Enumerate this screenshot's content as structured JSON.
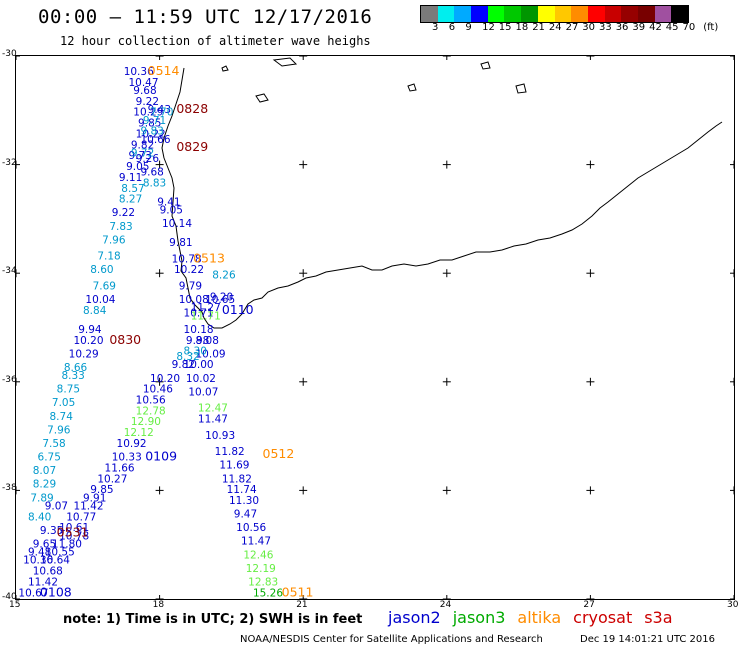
{
  "header": {
    "title": "00:00 – 11:59 UTC 12/17/2016",
    "subtitle": "12 hour collection of altimeter wave heighs"
  },
  "colorbar": {
    "colors": [
      "#7a7a7a",
      "#00eeee",
      "#00aaff",
      "#0000ff",
      "#00ff00",
      "#00c800",
      "#009600",
      "#ffff00",
      "#ffc800",
      "#ff8c00",
      "#ff0000",
      "#c80000",
      "#960000",
      "#780000",
      "#a050a0",
      "#000000"
    ],
    "labels": [
      "3",
      "6",
      "9",
      "12",
      "15",
      "18",
      "21",
      "24",
      "27",
      "30",
      "33",
      "36",
      "39",
      "42",
      "45",
      "70",
      "(ft)"
    ]
  },
  "axes": {
    "lat_labels": [
      "-30",
      "-32",
      "-34",
      "-36",
      "-38",
      "-40"
    ],
    "lon_labels": [
      "15",
      "18",
      "21",
      "24",
      "27",
      "30"
    ],
    "lon_range": [
      15,
      30
    ],
    "lat_range": [
      -30,
      -40
    ]
  },
  "chart_data": {
    "type": "scatter",
    "title": "12 hour collection of altimeter wave heighs",
    "xlim": [
      15,
      30
    ],
    "ylim": [
      -40,
      -30
    ],
    "colors": {
      "jason2": "#0000cc",
      "jason3": "#00aa00",
      "altika": "#ff8c00",
      "cryosat": "#cc0000",
      "s3a": "#cc0000",
      "dark": "#8b0000",
      "cyan": "#0099cc",
      "lightgreen": "#66ee44"
    },
    "series": [
      {
        "name": "jason2",
        "points": [
          {
            "lon": 17.25,
            "lat": -30.35,
            "v": "10.36",
            "c": "jason2"
          },
          {
            "lon": 17.35,
            "lat": -30.55,
            "v": "10.47",
            "c": "jason2"
          },
          {
            "lon": 17.45,
            "lat": -30.7,
            "v": "9.68",
            "c": "jason2"
          },
          {
            "lon": 17.5,
            "lat": -30.9,
            "v": "9.22",
            "c": "jason2"
          },
          {
            "lon": 17.75,
            "lat": -31.05,
            "v": "9.43",
            "c": "jason2"
          },
          {
            "lon": 17.45,
            "lat": -31.1,
            "v": "10.29",
            "c": "jason2"
          },
          {
            "lon": 17.55,
            "lat": -31.3,
            "v": "9.85",
            "c": "jason2"
          },
          {
            "lon": 17.5,
            "lat": -31.5,
            "v": "10.22",
            "c": "jason2"
          },
          {
            "lon": 17.6,
            "lat": -31.6,
            "v": "10.66",
            "c": "jason2"
          },
          {
            "lon": 17.4,
            "lat": -31.7,
            "v": "9.82",
            "c": "jason2"
          },
          {
            "lon": 17.35,
            "lat": -31.9,
            "v": "9.73",
            "c": "jason2"
          },
          {
            "lon": 17.5,
            "lat": -31.95,
            "v": "9.26",
            "c": "jason2"
          },
          {
            "lon": 17.3,
            "lat": -32.1,
            "v": "9.05",
            "c": "jason2"
          },
          {
            "lon": 17.6,
            "lat": -32.2,
            "v": "9.68",
            "c": "jason2"
          },
          {
            "lon": 17.15,
            "lat": -32.3,
            "v": "9.11",
            "c": "jason2"
          },
          {
            "lon": 17.95,
            "lat": -32.75,
            "v": "9.41",
            "c": "jason2"
          },
          {
            "lon": 17.0,
            "lat": -32.95,
            "v": "9.22",
            "c": "jason2"
          },
          {
            "lon": 18.0,
            "lat": -32.9,
            "v": "9.05",
            "c": "jason2"
          },
          {
            "lon": 18.05,
            "lat": -33.15,
            "v": "10.14",
            "c": "jason2"
          },
          {
            "lon": 18.2,
            "lat": -33.5,
            "v": "9.81",
            "c": "jason2"
          },
          {
            "lon": 18.25,
            "lat": -33.8,
            "v": "10.78",
            "c": "jason2"
          },
          {
            "lon": 18.3,
            "lat": -34.0,
            "v": "10.22",
            "c": "jason2"
          },
          {
            "lon": 18.4,
            "lat": -34.3,
            "v": "9.79",
            "c": "jason2"
          },
          {
            "lon": 18.4,
            "lat": -34.55,
            "v": "10.08",
            "c": "jason2"
          },
          {
            "lon": 19.05,
            "lat": -34.5,
            "v": "9.20",
            "c": "jason2"
          },
          {
            "lon": 18.95,
            "lat": -34.55,
            "v": "10.65",
            "c": "jason2"
          },
          {
            "lon": 18.65,
            "lat": -34.7,
            "v": "11.27",
            "c": "jason2"
          },
          {
            "lon": 18.5,
            "lat": -34.8,
            "v": "10.71",
            "c": "jason2"
          },
          {
            "lon": 18.5,
            "lat": -35.1,
            "v": "10.18",
            "c": "jason2"
          },
          {
            "lon": 18.55,
            "lat": -35.3,
            "v": "9.98",
            "c": "jason2"
          },
          {
            "lon": 18.75,
            "lat": -35.3,
            "v": "8.08",
            "c": "jason2"
          },
          {
            "lon": 18.75,
            "lat": -35.55,
            "v": "10.09",
            "c": "jason2"
          },
          {
            "lon": 18.25,
            "lat": -35.75,
            "v": "9.82",
            "c": "jason2"
          },
          {
            "lon": 18.5,
            "lat": -35.75,
            "v": "10.00",
            "c": "jason2"
          },
          {
            "lon": 17.8,
            "lat": -36.0,
            "v": "10.20",
            "c": "jason2"
          },
          {
            "lon": 18.55,
            "lat": -36.0,
            "v": "10.02",
            "c": "jason2"
          },
          {
            "lon": 17.65,
            "lat": -36.2,
            "v": "10.46",
            "c": "jason2"
          },
          {
            "lon": 18.6,
            "lat": -36.25,
            "v": "10.07",
            "c": "jason2"
          },
          {
            "lon": 17.5,
            "lat": -36.4,
            "v": "10.56",
            "c": "jason2"
          },
          {
            "lon": 18.8,
            "lat": -36.75,
            "v": "11.47",
            "c": "jason2"
          },
          {
            "lon": 18.95,
            "lat": -37.05,
            "v": "10.93",
            "c": "jason2"
          },
          {
            "lon": 17.1,
            "lat": -37.2,
            "v": "10.92",
            "c": "jason2"
          },
          {
            "lon": 17.0,
            "lat": -37.45,
            "v": "10.33",
            "c": "jason2"
          },
          {
            "lon": 19.15,
            "lat": -37.35,
            "v": "11.82",
            "c": "jason2"
          },
          {
            "lon": 16.85,
            "lat": -37.65,
            "v": "11.66",
            "c": "jason2"
          },
          {
            "lon": 19.25,
            "lat": -37.6,
            "v": "11.69",
            "c": "jason2"
          },
          {
            "lon": 16.7,
            "lat": -37.85,
            "v": "10.27",
            "c": "jason2"
          },
          {
            "lon": 19.3,
            "lat": -37.85,
            "v": "11.82",
            "c": "jason2"
          },
          {
            "lon": 16.55,
            "lat": -38.05,
            "v": "9.85",
            "c": "jason2"
          },
          {
            "lon": 19.4,
            "lat": -38.05,
            "v": "11.74",
            "c": "jason2"
          },
          {
            "lon": 16.4,
            "lat": -38.2,
            "v": "9.91",
            "c": "jason2"
          },
          {
            "lon": 19.45,
            "lat": -38.25,
            "v": "11.30",
            "c": "jason2"
          },
          {
            "lon": 16.2,
            "lat": -38.35,
            "v": "11.42",
            "c": "jason2"
          },
          {
            "lon": 15.6,
            "lat": -38.35,
            "v": "9.07",
            "c": "jason2"
          },
          {
            "lon": 19.55,
            "lat": -38.5,
            "v": "9.47",
            "c": "jason2"
          },
          {
            "lon": 16.05,
            "lat": -38.55,
            "v": "10.77",
            "c": "jason2"
          },
          {
            "lon": 19.6,
            "lat": -38.75,
            "v": "10.56",
            "c": "jason2"
          },
          {
            "lon": 15.9,
            "lat": -38.75,
            "v": "10.61",
            "c": "jason2"
          },
          {
            "lon": 15.5,
            "lat": -38.8,
            "v": "9.35",
            "c": "jason2"
          },
          {
            "lon": 15.9,
            "lat": -38.9,
            "v": "10.78",
            "c": "jason2"
          },
          {
            "lon": 19.7,
            "lat": -39.0,
            "v": "11.47",
            "c": "jason2"
          },
          {
            "lon": 15.75,
            "lat": -39.05,
            "v": "11.80",
            "c": "jason2"
          },
          {
            "lon": 15.35,
            "lat": -39.05,
            "v": "9.65",
            "c": "jason2"
          },
          {
            "lon": 15.6,
            "lat": -39.2,
            "v": "10.55",
            "c": "jason2"
          },
          {
            "lon": 15.25,
            "lat": -39.2,
            "v": "9.48",
            "c": "jason2"
          },
          {
            "lon": 15.5,
            "lat": -39.35,
            "v": "10.64",
            "c": "jason2"
          },
          {
            "lon": 15.15,
            "lat": -39.35,
            "v": "10.36",
            "c": "jason2"
          },
          {
            "lon": 15.35,
            "lat": -39.55,
            "v": "10.68",
            "c": "jason2"
          },
          {
            "lon": 15.25,
            "lat": -39.75,
            "v": "11.42",
            "c": "jason2"
          },
          {
            "lon": 15.05,
            "lat": -39.95,
            "v": "10.67",
            "c": "jason2"
          }
        ]
      },
      {
        "name": "jason3",
        "points": [
          {
            "lon": 18.65,
            "lat": -34.85,
            "v": "11.71",
            "c": "lightgreen"
          },
          {
            "lon": 17.5,
            "lat": -36.6,
            "v": "12.78",
            "c": "lightgreen"
          },
          {
            "lon": 18.8,
            "lat": -36.55,
            "v": "12.47",
            "c": "lightgreen"
          },
          {
            "lon": 17.4,
            "lat": -36.8,
            "v": "12.90",
            "c": "lightgreen"
          },
          {
            "lon": 17.25,
            "lat": -37.0,
            "v": "12.12",
            "c": "lightgreen"
          },
          {
            "lon": 19.75,
            "lat": -39.25,
            "v": "12.46",
            "c": "lightgreen"
          },
          {
            "lon": 19.8,
            "lat": -39.5,
            "v": "12.19",
            "c": "lightgreen"
          },
          {
            "lon": 19.85,
            "lat": -39.75,
            "v": "12.83",
            "c": "lightgreen"
          },
          {
            "lon": 19.95,
            "lat": -39.95,
            "v": "15.26",
            "c": "jason3"
          }
        ]
      },
      {
        "name": "altika",
        "points": [
          {
            "lon": 17.8,
            "lat": -31.1,
            "v": "7.70",
            "c": "cyan"
          },
          {
            "lon": 17.65,
            "lat": -31.25,
            "v": "9.71",
            "c": "cyan"
          },
          {
            "lon": 17.6,
            "lat": -31.45,
            "v": "9.83",
            "c": "cyan"
          },
          {
            "lon": 17.4,
            "lat": -31.85,
            "v": "9.72",
            "c": "cyan"
          },
          {
            "lon": 17.65,
            "lat": -32.4,
            "v": "8.83",
            "c": "cyan"
          },
          {
            "lon": 17.2,
            "lat": -32.5,
            "v": "8.57",
            "c": "cyan"
          },
          {
            "lon": 17.15,
            "lat": -32.7,
            "v": "8.27",
            "c": "cyan"
          },
          {
            "lon": 16.95,
            "lat": -33.2,
            "v": "7.83",
            "c": "cyan"
          },
          {
            "lon": 16.8,
            "lat": -33.45,
            "v": "7.96",
            "c": "cyan"
          },
          {
            "lon": 16.7,
            "lat": -33.75,
            "v": "7.18",
            "c": "cyan"
          },
          {
            "lon": 19.1,
            "lat": -34.1,
            "v": "8.26",
            "c": "cyan"
          },
          {
            "lon": 16.55,
            "lat": -34.0,
            "v": "8.60",
            "c": "cyan"
          },
          {
            "lon": 16.6,
            "lat": -34.3,
            "v": "7.69",
            "c": "cyan"
          },
          {
            "lon": 16.45,
            "lat": -34.55,
            "v": "10.04",
            "c": "jason2"
          },
          {
            "lon": 16.4,
            "lat": -34.75,
            "v": "8.84",
            "c": "cyan"
          },
          {
            "lon": 16.3,
            "lat": -35.1,
            "v": "9.94",
            "c": "jason2"
          },
          {
            "lon": 16.2,
            "lat": -35.3,
            "v": "10.20",
            "c": "jason2"
          },
          {
            "lon": 16.1,
            "lat": -35.55,
            "v": "10.29",
            "c": "jason2"
          },
          {
            "lon": 18.5,
            "lat": -35.5,
            "v": "8.30",
            "c": "cyan"
          },
          {
            "lon": 18.35,
            "lat": -35.6,
            "v": "8.32",
            "c": "cyan"
          },
          {
            "lon": 16.0,
            "lat": -35.8,
            "v": "8.66",
            "c": "cyan"
          },
          {
            "lon": 15.95,
            "lat": -35.95,
            "v": "8.33",
            "c": "cyan"
          },
          {
            "lon": 15.85,
            "lat": -36.2,
            "v": "8.75",
            "c": "cyan"
          },
          {
            "lon": 15.75,
            "lat": -36.45,
            "v": "7.05",
            "c": "cyan"
          },
          {
            "lon": 15.7,
            "lat": -36.7,
            "v": "8.74",
            "c": "cyan"
          },
          {
            "lon": 15.65,
            "lat": -36.95,
            "v": "7.96",
            "c": "cyan"
          },
          {
            "lon": 15.55,
            "lat": -37.2,
            "v": "7.58",
            "c": "cyan"
          },
          {
            "lon": 15.45,
            "lat": -37.45,
            "v": "6.75",
            "c": "cyan"
          },
          {
            "lon": 15.35,
            "lat": -37.7,
            "v": "8.07",
            "c": "cyan"
          },
          {
            "lon": 15.35,
            "lat": -37.95,
            "v": "8.29",
            "c": "cyan"
          },
          {
            "lon": 15.3,
            "lat": -38.2,
            "v": "7.89",
            "c": "cyan"
          },
          {
            "lon": 15.25,
            "lat": -38.55,
            "v": "8.40",
            "c": "cyan"
          }
        ]
      }
    ],
    "pass_labels": [
      {
        "lon": 17.75,
        "lat": -30.35,
        "t": "0514",
        "c": "altika"
      },
      {
        "lon": 18.35,
        "lat": -31.05,
        "t": "0828",
        "c": "dark"
      },
      {
        "lon": 18.35,
        "lat": -31.75,
        "t": "0829",
        "c": "dark"
      },
      {
        "lon": 18.7,
        "lat": -33.8,
        "t": "0513",
        "c": "altika"
      },
      {
        "lon": 19.3,
        "lat": -34.75,
        "t": "0110",
        "c": "jason2"
      },
      {
        "lon": 16.95,
        "lat": -35.3,
        "t": "0830",
        "c": "dark"
      },
      {
        "lon": 17.7,
        "lat": -37.45,
        "t": "0109",
        "c": "jason2"
      },
      {
        "lon": 20.15,
        "lat": -37.4,
        "t": "0512",
        "c": "altika"
      },
      {
        "lon": 15.85,
        "lat": -38.85,
        "t": "0531",
        "c": "dark"
      },
      {
        "lon": 15.5,
        "lat": -39.95,
        "t": "0108",
        "c": "jason2"
      },
      {
        "lon": 20.55,
        "lat": -39.95,
        "t": "0511",
        "c": "altika"
      }
    ]
  },
  "footer": {
    "note": "note: 1) Time is in UTC; 2) SWH is in feet",
    "legend": [
      {
        "label": "jason2",
        "color": "#0000cc"
      },
      {
        "label": "jason3",
        "color": "#00aa00"
      },
      {
        "label": "altika",
        "color": "#ff8c00"
      },
      {
        "label": "cryosat",
        "color": "#cc0000"
      },
      {
        "label": "s3a",
        "color": "#cc0000"
      }
    ],
    "credit": "NOAA/NESDIS Center for Satellite Applications and Research",
    "timestamp": "Dec 19 14:01:21 UTC 2016"
  }
}
